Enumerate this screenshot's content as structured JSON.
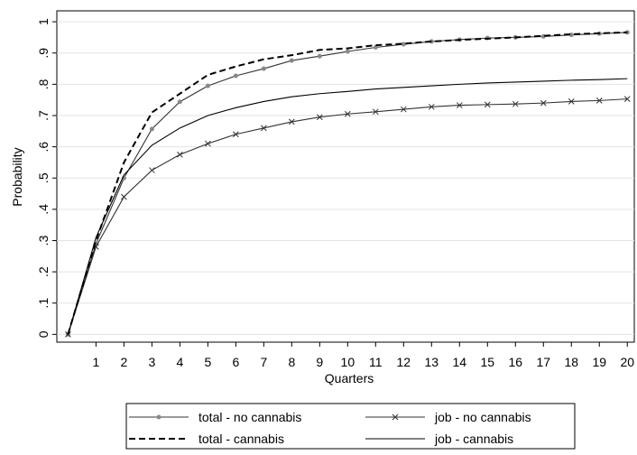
{
  "chart_data": {
    "type": "line",
    "x_label": "Quarters",
    "y_label": "Probability",
    "x": [
      0,
      1,
      2,
      3,
      4,
      5,
      6,
      7,
      8,
      9,
      10,
      11,
      12,
      13,
      14,
      15,
      16,
      17,
      18,
      19,
      20
    ],
    "xlim": [
      -0.4,
      20.25
    ],
    "xticks": [
      1,
      2,
      3,
      4,
      5,
      6,
      7,
      8,
      9,
      10,
      11,
      12,
      13,
      14,
      15,
      16,
      17,
      18,
      19,
      20
    ],
    "ylim": [
      -0.025,
      1.035
    ],
    "yticks": [
      0,
      {
        "value": 0.1,
        "label": ".1"
      },
      {
        "value": 0.2,
        "label": ".2"
      },
      {
        "value": 0.3,
        "label": ".3"
      },
      {
        "value": 0.4,
        "label": ".4"
      },
      {
        "value": 0.5,
        "label": ".5"
      },
      {
        "value": 0.6,
        "label": ".6"
      },
      {
        "value": 0.7,
        "label": ".7"
      },
      {
        "value": 0.8,
        "label": ".8"
      },
      {
        "value": 0.9,
        "label": ".9"
      },
      1
    ],
    "grid": true,
    "series": [
      {
        "name": "total - no cannabis",
        "color": "#333333",
        "marker": "circle",
        "dash": false,
        "values": [
          0,
          0.29,
          0.5,
          0.657,
          0.744,
          0.795,
          0.827,
          0.85,
          0.876,
          0.89,
          0.905,
          0.918,
          0.928,
          0.937,
          0.943,
          0.948,
          0.95,
          0.953,
          0.958,
          0.962,
          0.966
        ]
      },
      {
        "name": "job - no cannabis",
        "color": "#333333",
        "marker": "x",
        "dash": false,
        "values": [
          0,
          0.28,
          0.44,
          0.525,
          0.575,
          0.61,
          0.64,
          0.66,
          0.68,
          0.695,
          0.705,
          0.712,
          0.72,
          0.728,
          0.733,
          0.735,
          0.737,
          0.74,
          0.745,
          0.748,
          0.753
        ]
      },
      {
        "name": "total - cannabis",
        "color": "#000000",
        "marker": "none",
        "dash": true,
        "values": [
          0,
          0.3,
          0.55,
          0.71,
          0.77,
          0.83,
          0.857,
          0.88,
          0.893,
          0.91,
          0.915,
          0.925,
          0.93,
          0.937,
          0.942,
          0.946,
          0.95,
          0.955,
          0.96,
          0.963,
          0.966
        ]
      },
      {
        "name": "job - cannabis",
        "color": "#000000",
        "marker": "none",
        "dash": false,
        "values": [
          0,
          0.31,
          0.51,
          0.605,
          0.66,
          0.7,
          0.725,
          0.745,
          0.76,
          0.77,
          0.777,
          0.785,
          0.79,
          0.795,
          0.8,
          0.804,
          0.807,
          0.81,
          0.813,
          0.815,
          0.818
        ]
      }
    ]
  }
}
